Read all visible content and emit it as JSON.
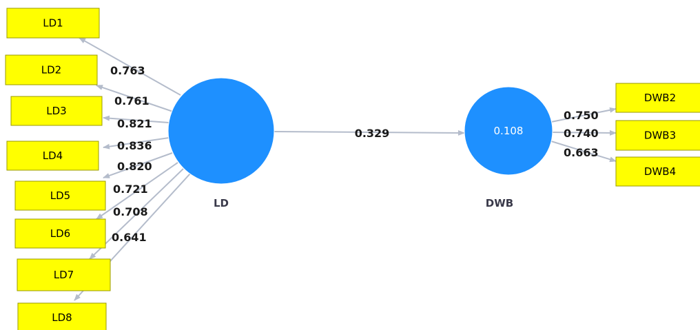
{
  "colors": {
    "indicator_fill": "#ffff00",
    "indicator_stroke": "#9a9a00",
    "latent_fill": "#1e90ff",
    "arrow": "#b4bccb"
  },
  "latents": [
    {
      "id": "LD",
      "name": "LD",
      "r2": ""
    },
    {
      "id": "DWB",
      "name": "DWB",
      "r2": "0.108"
    }
  ],
  "indicators": {
    "LD": [
      {
        "name": "LD1",
        "loading": "0.763"
      },
      {
        "name": "LD2",
        "loading": "0.761"
      },
      {
        "name": "LD3",
        "loading": "0.821"
      },
      {
        "name": "LD4",
        "loading": "0.836"
      },
      {
        "name": "LD5",
        "loading": "0.820"
      },
      {
        "name": "LD6",
        "loading": "0.721"
      },
      {
        "name": "LD7",
        "loading": "0.708"
      },
      {
        "name": "LD8",
        "loading": "0.641"
      }
    ],
    "DWB": [
      {
        "name": "DWB2",
        "loading": "0.750"
      },
      {
        "name": "DWB3",
        "loading": "0.740"
      },
      {
        "name": "DWB4",
        "loading": "0.663"
      }
    ]
  },
  "paths": [
    {
      "from": "LD",
      "to": "DWB",
      "coefficient": "0.329"
    }
  ]
}
